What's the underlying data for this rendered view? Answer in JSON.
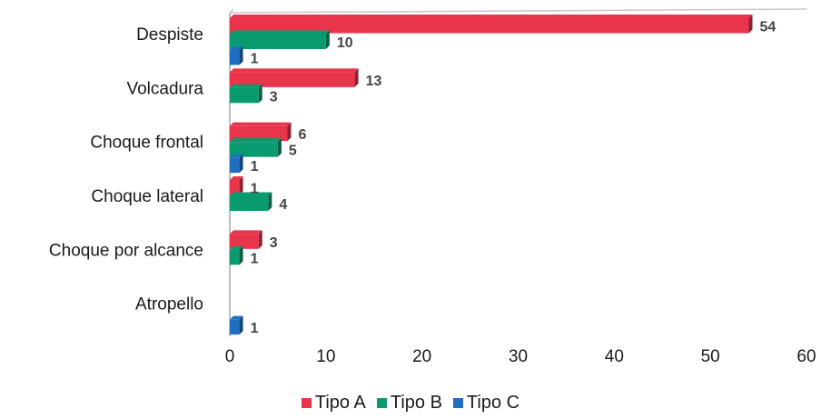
{
  "chart_data": {
    "type": "bar",
    "orientation": "horizontal",
    "categories": [
      "Despiste",
      "Volcadura",
      "Choque frontal",
      "Choque lateral",
      "Choque por alcance",
      "Atropello"
    ],
    "series": [
      {
        "name": "Tipo A",
        "color": "#e8354c",
        "values": [
          54,
          13,
          6,
          1,
          3,
          0
        ]
      },
      {
        "name": "Tipo B",
        "color": "#0a9a70",
        "values": [
          10,
          3,
          5,
          4,
          1,
          0
        ]
      },
      {
        "name": "Tipo C",
        "color": "#1f6fc0",
        "values": [
          1,
          0,
          1,
          0,
          0,
          1
        ]
      }
    ],
    "data_labels": [
      [
        "54",
        "10",
        "1"
      ],
      [
        "13",
        "3",
        null
      ],
      [
        "6",
        "5",
        "1"
      ],
      [
        "1",
        "4",
        null
      ],
      [
        "3",
        "1",
        null
      ],
      [
        null,
        null,
        "1"
      ]
    ],
    "xlim": [
      0,
      60
    ],
    "xticks": [
      0,
      10,
      20,
      30,
      40,
      50,
      60
    ],
    "xtick_labels": [
      "0",
      "10",
      "20",
      "30",
      "40",
      "50",
      "60"
    ],
    "grid": false,
    "legend_position": "bottom",
    "title": "",
    "xlabel": "",
    "ylabel": ""
  }
}
